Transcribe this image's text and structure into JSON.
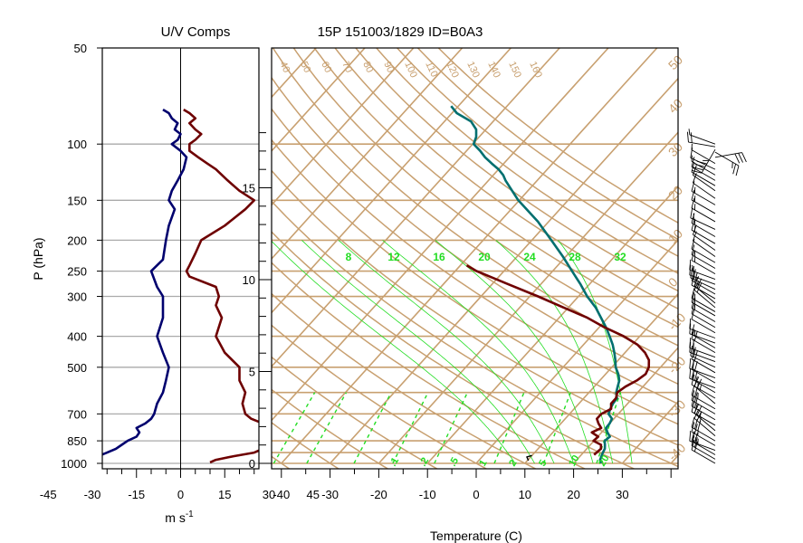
{
  "chart_data": [
    {
      "type": "line",
      "title": "U/V Comps",
      "ylabel": "P (hPa)",
      "xlabel_base": "m s",
      "xlabel_exp": "-1",
      "ylim": [
        1000,
        50
      ],
      "xlim": [
        -55,
        55
      ],
      "x_ticks": [
        -45,
        -30,
        -15,
        0,
        15,
        30,
        45
      ],
      "pressure_levels": [
        1000,
        850,
        700,
        500,
        400,
        300,
        250,
        200,
        150,
        100,
        50
      ],
      "series": [
        {
          "color": "#00006e",
          "p": [
            993,
            985,
            970,
            950,
            925,
            900,
            875,
            850,
            825,
            800,
            775,
            750,
            725,
            700,
            650,
            600,
            550,
            500,
            450,
            400,
            350,
            300,
            280,
            250,
            230,
            200,
            180,
            160,
            150,
            140,
            130,
            120,
            110,
            105,
            100,
            97,
            93,
            90,
            86,
            83,
            80,
            78
          ],
          "values": [
            -28,
            -31,
            -30,
            -28,
            -25,
            -22,
            -20,
            -18,
            -15,
            -14,
            -15,
            -12,
            -10,
            -9,
            -8,
            -6,
            -5,
            -4,
            -6,
            -8,
            -6,
            -6,
            -8,
            -10,
            -6,
            -5,
            -4,
            -2,
            -4,
            -3,
            -1,
            1,
            2,
            0,
            -3,
            -1,
            0,
            -2,
            -1,
            -3,
            -4,
            -6
          ]
        },
        {
          "color": "#6e0000",
          "p": [
            993,
            975,
            950,
            925,
            900,
            875,
            850,
            825,
            800,
            775,
            750,
            725,
            700,
            650,
            600,
            550,
            500,
            450,
            400,
            350,
            320,
            300,
            280,
            260,
            250,
            240,
            220,
            200,
            180,
            160,
            150,
            140,
            130,
            120,
            115,
            110,
            105,
            100,
            97,
            93,
            90,
            86,
            83,
            80,
            78
          ],
          "values": [
            10,
            12,
            18,
            25,
            28,
            30,
            30,
            30,
            31,
            30,
            28,
            24,
            22,
            21,
            22,
            20,
            20,
            15,
            12,
            14,
            12,
            13,
            12,
            3,
            2,
            3,
            5,
            7,
            15,
            22,
            25,
            20,
            16,
            12,
            9,
            6,
            3,
            3,
            5,
            7,
            5,
            3,
            5,
            3,
            1
          ]
        }
      ]
    },
    {
      "type": "line",
      "title": "15P 151003/1829 ID=B0A3",
      "xlabel": "Temperature (C)",
      "xlim": [
        -40,
        38
      ],
      "ylim": [
        1000,
        50
      ],
      "x_ticks": [
        -40,
        -30,
        -20,
        -10,
        0,
        10,
        20,
        30
      ],
      "height_km_ticks": [
        0,
        5,
        10,
        15
      ],
      "isotherm_labels": [
        -40,
        -30,
        -20,
        -10,
        0,
        10,
        20,
        30,
        40,
        50
      ],
      "isotherms": [
        -40,
        -30,
        -20,
        -10,
        0,
        10,
        20,
        30,
        40,
        50
      ],
      "dry_adiabat_labels": [
        40,
        50,
        60,
        70,
        80,
        90,
        100,
        110,
        120,
        130,
        140,
        150,
        160
      ],
      "moist_adiabat_labels": [
        8,
        12,
        16,
        20,
        24,
        28,
        32
      ],
      "mixing_ratio_labels": [
        ".1",
        ".2",
        ".5",
        "1",
        "2",
        "5",
        "10",
        "20"
      ],
      "series": [
        {
          "color": "#006f6f",
          "p": [
            1000,
            975,
            950,
            925,
            900,
            875,
            850,
            825,
            800,
            775,
            750,
            725,
            700,
            675,
            650,
            625,
            600,
            575,
            550,
            525,
            500,
            475,
            450,
            425,
            400,
            375,
            350,
            325,
            300,
            275,
            250,
            225,
            200,
            175,
            150,
            130,
            125,
            120,
            115,
            110,
            105,
            100,
            95,
            90,
            85,
            80,
            76
          ],
          "values": [
            25.6,
            24.8,
            24.4,
            24.0,
            23.7,
            23.0,
            22.2,
            22.5,
            21.2,
            20.1,
            20.0,
            19.6,
            18.0,
            17.4,
            17.0,
            16.8,
            15.6,
            14.8,
            14.0,
            12.6,
            10.8,
            9.4,
            7.8,
            6.0,
            3.8,
            1.4,
            -1.4,
            -4.4,
            -8.2,
            -11.8,
            -16.0,
            -20.6,
            -26.0,
            -32.2,
            -40.2,
            -46.5,
            -48.0,
            -50.0,
            -52.5,
            -55.0,
            -57.2,
            -59.8,
            -60.6,
            -62.0,
            -64.5,
            -69.0,
            -71.5
          ]
        },
        {
          "color": "#6f0000",
          "p": [
            940,
            900,
            875,
            850,
            825,
            800,
            775,
            750,
            725,
            700,
            675,
            650,
            625,
            600,
            575,
            550,
            525,
            500,
            475,
            450,
            425,
            400,
            375,
            350,
            325,
            300,
            275,
            250,
            240
          ],
          "values": [
            22.6,
            22.9,
            22.2,
            19.9,
            20.1,
            18.0,
            19.1,
            17.7,
            16.5,
            16.5,
            17.6,
            16.6,
            16.6,
            15.8,
            16.4,
            17.6,
            18.2,
            17.6,
            16.3,
            14.1,
            11.1,
            6.7,
            1.1,
            -4.2,
            -11.0,
            -18.3,
            -26.6,
            -35.6,
            -38.7
          ]
        },
        {
          "color": "#000000",
          "p": [
            980,
            955,
            945
          ],
          "values": [
            10.2,
            9.2,
            10.0
          ]
        }
      ]
    },
    {
      "type": "scatter",
      "p": [
        100,
        102,
        104,
        106,
        110,
        115,
        120,
        125,
        130,
        135,
        140,
        148,
        155,
        165,
        175,
        185,
        195,
        205,
        215,
        225,
        235,
        245,
        255,
        265,
        275,
        285,
        295,
        305,
        315,
        325,
        335,
        345,
        360,
        375,
        390,
        405,
        420,
        435,
        450,
        465,
        480,
        500,
        520,
        540,
        560,
        580,
        600,
        625,
        650,
        675,
        700,
        730,
        760,
        790,
        820,
        850,
        880,
        910,
        940,
        970,
        1000
      ],
      "speed": [
        5,
        20,
        45,
        28,
        30,
        8,
        10,
        8,
        12,
        10,
        12,
        14,
        15,
        16,
        15,
        16,
        18,
        15,
        12,
        14,
        14,
        15,
        16,
        18,
        20,
        22,
        24,
        26,
        24,
        20,
        18,
        16,
        15,
        14,
        12,
        12,
        15,
        18,
        20,
        22,
        22,
        22,
        20,
        20,
        22,
        22,
        24,
        26,
        28,
        26,
        24,
        24,
        24,
        26,
        28,
        30,
        28,
        26,
        26,
        24,
        22
      ],
      "direction": [
        290,
        280,
        210,
        120,
        80,
        300,
        295,
        300,
        300,
        300,
        305,
        305,
        300,
        300,
        300,
        295,
        300,
        300,
        305,
        305,
        300,
        300,
        300,
        290,
        290,
        295,
        300,
        300,
        310,
        310,
        300,
        300,
        300,
        300,
        300,
        290,
        290,
        300,
        300,
        290,
        290,
        295,
        300,
        290,
        300,
        290,
        300,
        300,
        310,
        300,
        300,
        300,
        300,
        310,
        310,
        300,
        300,
        290,
        300,
        300,
        300
      ]
    }
  ]
}
